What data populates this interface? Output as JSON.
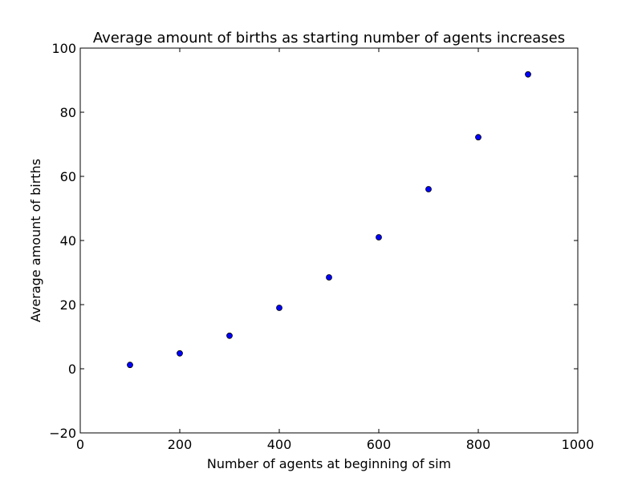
{
  "chart_data": {
    "type": "scatter",
    "title": "Average amount of births as starting number of agents increases",
    "xlabel": "Number of agents at beginning of sim",
    "ylabel": "Average amount of births",
    "xlim": [
      0,
      1000
    ],
    "ylim": [
      -20,
      100
    ],
    "x_ticks": [
      0,
      200,
      400,
      600,
      800,
      1000
    ],
    "y_ticks": [
      -20,
      0,
      20,
      40,
      60,
      80,
      100
    ],
    "x_tick_labels": [
      "0",
      "200",
      "400",
      "600",
      "800",
      "1000"
    ],
    "y_tick_labels": [
      "−20",
      "0",
      "20",
      "40",
      "60",
      "80",
      "100"
    ],
    "grid": false,
    "legend": "none",
    "point_color": "#0000ff",
    "point_edge_color": "#000000",
    "series": [
      {
        "x": [
          100,
          200,
          300,
          400,
          500,
          600,
          700,
          800,
          900
        ],
        "y": [
          1.2,
          4.8,
          10.3,
          19.0,
          28.5,
          41.0,
          56.0,
          72.2,
          91.8
        ]
      }
    ]
  }
}
